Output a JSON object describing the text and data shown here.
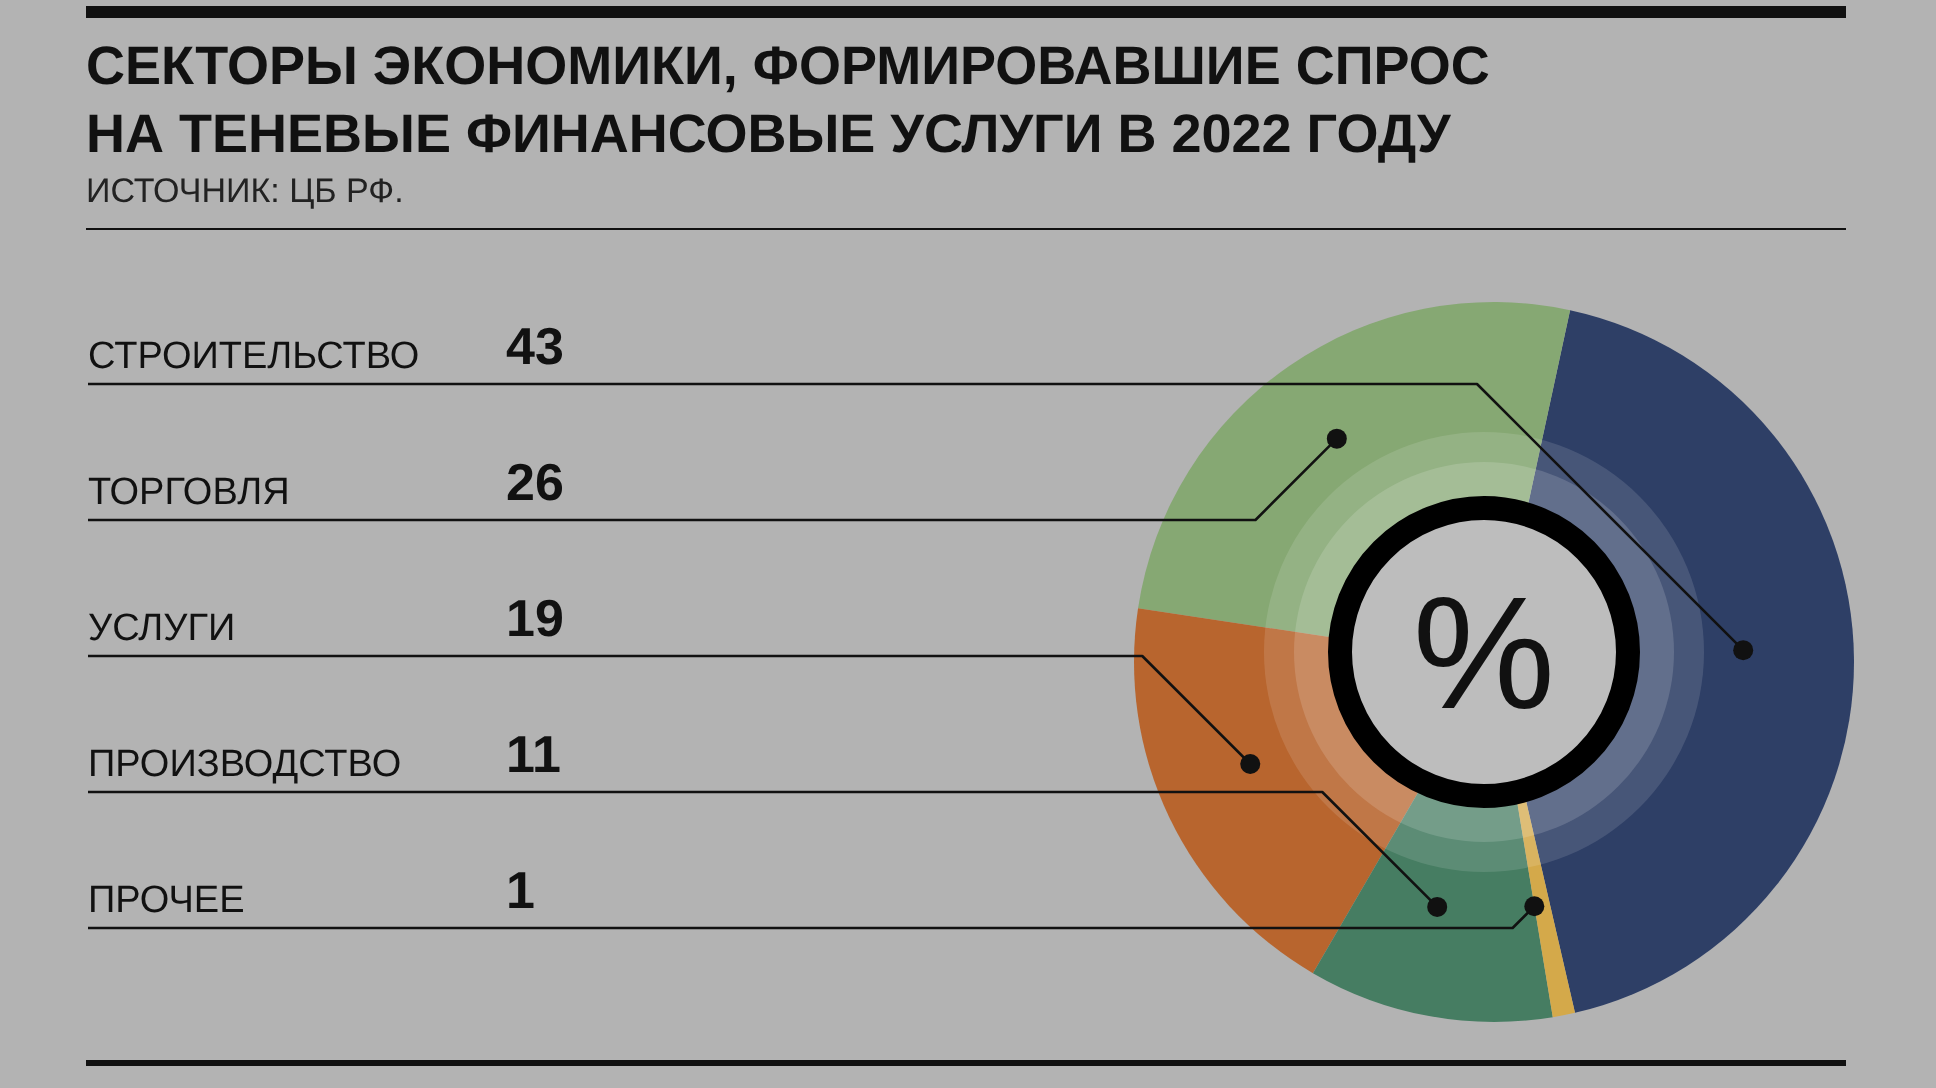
{
  "chart_data": {
    "type": "pie",
    "title": "СЕКТОРЫ ЭКОНОМИКИ, ФОРМИРОВАВШИЕ СПРОС НА ТЕНЕВЫЕ ФИНАНСОВЫЕ УСЛУГИ В 2022 ГОДУ",
    "annotations": [
      "ИСТОЧНИК: ЦБ РФ.",
      "%"
    ],
    "categories": [
      "СТРОИТЕЛЬСТВО",
      "ТОРГОВЛЯ",
      "УСЛУГИ",
      "ПРОИЗВОДСТВО",
      "ПРОЧЕЕ"
    ],
    "values": [
      43,
      26,
      19,
      11,
      1
    ],
    "colors": [
      "#2e3f66",
      "#86a873",
      "#b8652e",
      "#467d62",
      "#d4a94a"
    ],
    "data_labels": true
  }
}
